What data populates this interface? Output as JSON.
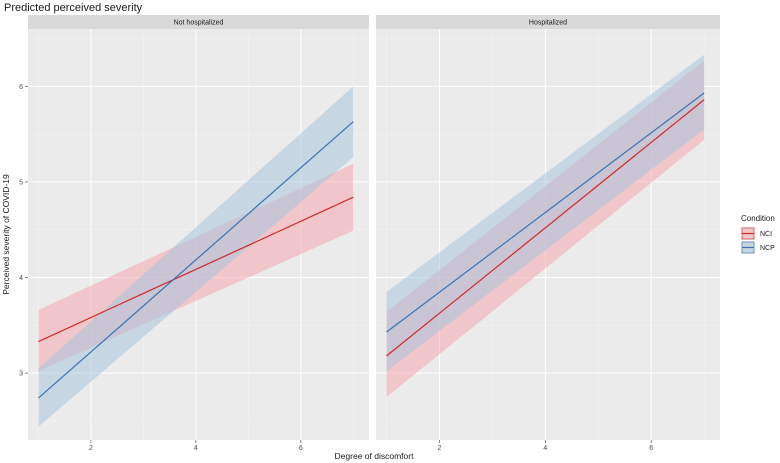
{
  "chart_data": {
    "type": "line",
    "title": "Predicted perceived severity",
    "xlabel": "Degree of discomfort",
    "ylabel": "Perceived severity of COVID-19",
    "xlim": [
      0.8,
      7.3
    ],
    "ylim": [
      2.3,
      6.6
    ],
    "x_ticks": [
      2,
      4,
      6
    ],
    "y_ticks": [
      3,
      4,
      5,
      6
    ],
    "grid": true,
    "legend": {
      "title": "Condition",
      "position": "right",
      "entries": [
        "NCI",
        "NCP"
      ]
    },
    "colors": {
      "NCI": "#d62728",
      "NCP": "#3b73b2",
      "NCI_band": "#f4a8ae",
      "NCP_band": "#a9c4dc"
    },
    "panels": [
      {
        "label": "Not hospitalized",
        "series": [
          {
            "name": "NCI",
            "x": [
              1,
              7
            ],
            "y": [
              3.33,
              4.84
            ],
            "lower": [
              3.02,
              4.49
            ],
            "upper": [
              3.66,
              5.19
            ]
          },
          {
            "name": "NCP",
            "x": [
              1,
              7
            ],
            "y": [
              2.74,
              5.63
            ],
            "lower": [
              2.44,
              5.26
            ],
            "upper": [
              3.05,
              6.0
            ]
          }
        ]
      },
      {
        "label": "Hospitalized",
        "series": [
          {
            "name": "NCI",
            "x": [
              1,
              7
            ],
            "y": [
              3.18,
              5.86
            ],
            "lower": [
              2.75,
              5.44
            ],
            "upper": [
              3.64,
              6.27
            ]
          },
          {
            "name": "NCP",
            "x": [
              1,
              7
            ],
            "y": [
              3.43,
              5.93
            ],
            "lower": [
              3.02,
              5.55
            ],
            "upper": [
              3.85,
              6.33
            ]
          }
        ]
      }
    ]
  }
}
